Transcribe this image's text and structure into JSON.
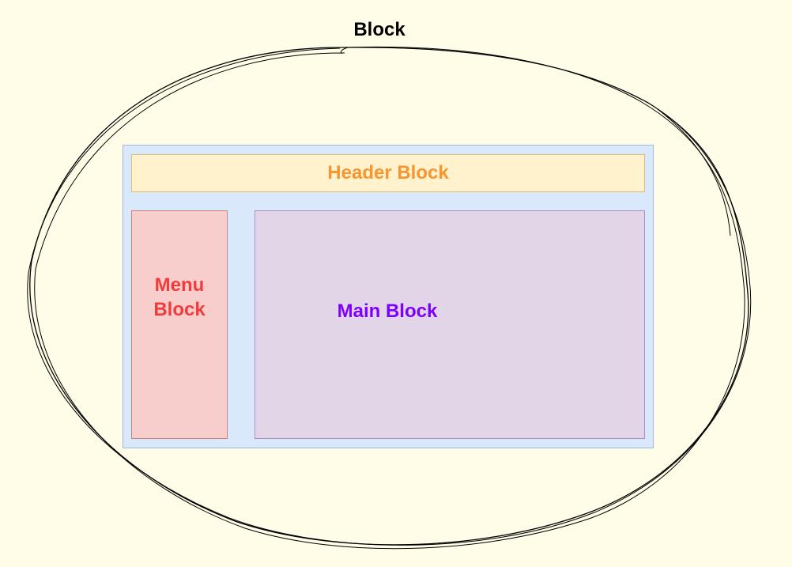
{
  "diagram": {
    "outer": {
      "label": "Block"
    },
    "header": {
      "label": "Header Block",
      "fill": "#fff2cc",
      "text_color": "#f7952f"
    },
    "menu": {
      "label_line1": "Menu",
      "label_line2": "Block",
      "fill": "#f8cecc",
      "text_color": "#f23b3b"
    },
    "main": {
      "label": "Main Block",
      "fill": "#e1d5e7",
      "text_color": "#7f00ff"
    },
    "container": {
      "fill": "#dae8fc"
    },
    "background": "#fffde8"
  }
}
